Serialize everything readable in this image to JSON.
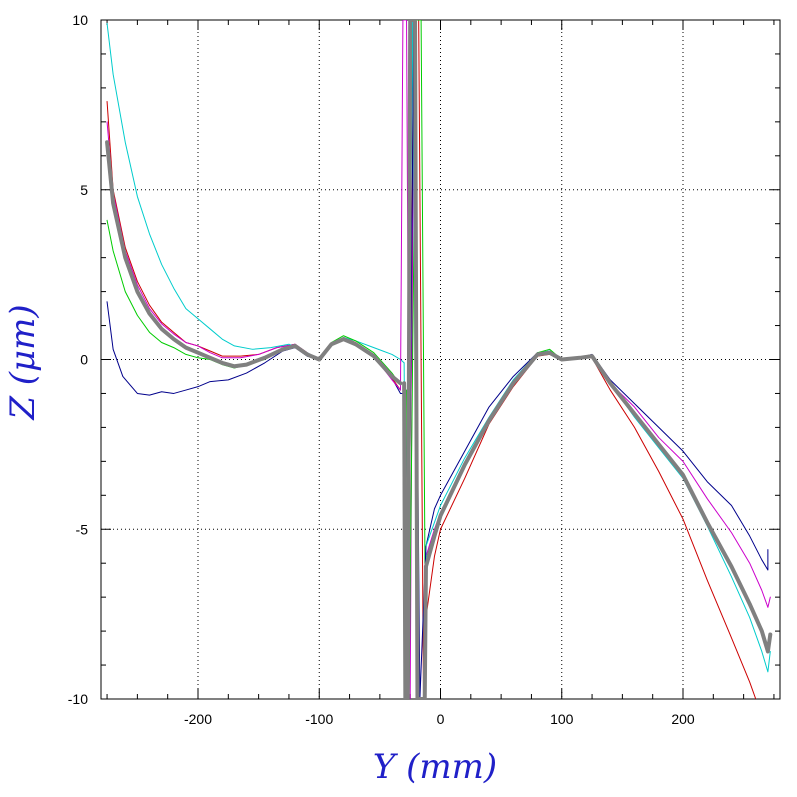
{
  "chart_data": {
    "type": "line",
    "xlabel": "Y (mm)",
    "ylabel": "Z (μm)",
    "xlim": [
      -280,
      280
    ],
    "ylim": [
      -10,
      10
    ],
    "xticks": [
      -200,
      -100,
      0,
      100,
      200
    ],
    "xtick_labels": [
      "-200",
      "-100",
      "0",
      "100",
      "200"
    ],
    "yticks": [
      -10,
      -5,
      0,
      5,
      10
    ],
    "ytick_labels": [
      "-10",
      "-5",
      "0",
      "5",
      "10"
    ],
    "grid": true,
    "legend": "none",
    "series": [
      {
        "color": "#00008b",
        "stroke_width": 1,
        "points": [
          [
            -275,
            1.7
          ],
          [
            -270,
            0.3
          ],
          [
            -262,
            -0.5
          ],
          [
            -250,
            -1.0
          ],
          [
            -240,
            -1.05
          ],
          [
            -230,
            -0.95
          ],
          [
            -220,
            -1.0
          ],
          [
            -210,
            -0.9
          ],
          [
            -200,
            -0.8
          ],
          [
            -190,
            -0.65
          ],
          [
            -175,
            -0.6
          ],
          [
            -160,
            -0.4
          ],
          [
            -145,
            -0.1
          ],
          [
            -130,
            0.25
          ],
          [
            -120,
            0.35
          ],
          [
            -110,
            0.1
          ],
          [
            -100,
            0.0
          ],
          [
            -90,
            0.45
          ],
          [
            -80,
            0.6
          ],
          [
            -70,
            0.45
          ],
          [
            -55,
            0.1
          ],
          [
            -40,
            -0.55
          ],
          [
            -33,
            -1.0
          ],
          [
            -30,
            -1.0
          ],
          null,
          [
            -12,
            -5.5
          ],
          [
            -5,
            -4.4
          ],
          [
            0,
            -4.0
          ],
          [
            20,
            -2.7
          ],
          [
            40,
            -1.4
          ],
          [
            60,
            -0.5
          ],
          [
            80,
            0.2
          ],
          [
            90,
            0.25
          ],
          [
            100,
            0.0
          ],
          [
            115,
            0.05
          ],
          [
            125,
            0.15
          ],
          [
            140,
            -0.6
          ],
          [
            160,
            -1.3
          ],
          [
            180,
            -2.0
          ],
          [
            200,
            -2.7
          ],
          [
            220,
            -3.6
          ],
          [
            240,
            -4.3
          ],
          [
            255,
            -5.2
          ],
          [
            265,
            -5.9
          ],
          [
            270,
            -6.2
          ],
          [
            270,
            -5.6
          ]
        ]
      },
      {
        "color": "#cc0000",
        "stroke_width": 1,
        "points": [
          [
            -275,
            7.6
          ],
          [
            -270,
            5.0
          ],
          [
            -260,
            3.3
          ],
          [
            -250,
            2.3
          ],
          [
            -240,
            1.6
          ],
          [
            -230,
            1.1
          ],
          [
            -220,
            0.8
          ],
          [
            -210,
            0.5
          ],
          [
            -200,
            0.4
          ],
          [
            -190,
            0.25
          ],
          [
            -180,
            0.1
          ],
          [
            -165,
            0.1
          ],
          [
            -150,
            0.15
          ],
          [
            -135,
            0.35
          ],
          [
            -120,
            0.45
          ],
          [
            -110,
            0.2
          ],
          [
            -100,
            0.0
          ],
          [
            -90,
            0.45
          ],
          [
            -80,
            0.65
          ],
          [
            -70,
            0.5
          ],
          [
            -55,
            0.1
          ],
          [
            -40,
            -0.55
          ],
          [
            -33,
            -0.9
          ],
          null,
          [
            -12,
            -7.6
          ],
          [
            -5,
            -5.8
          ],
          [
            0,
            -5.0
          ],
          [
            20,
            -3.5
          ],
          [
            40,
            -1.9
          ],
          [
            60,
            -0.8
          ],
          [
            80,
            0.1
          ],
          [
            90,
            0.15
          ],
          [
            100,
            0.0
          ],
          [
            115,
            0.05
          ],
          [
            125,
            0.05
          ],
          [
            140,
            -0.9
          ],
          [
            160,
            -2.0
          ],
          [
            180,
            -3.3
          ],
          [
            200,
            -4.7
          ],
          [
            220,
            -6.5
          ],
          [
            240,
            -8.2
          ],
          [
            255,
            -9.5
          ],
          [
            260,
            -10.0
          ]
        ]
      },
      {
        "color": "#cc00cc",
        "stroke_width": 1,
        "points": [
          [
            -275,
            7.0
          ],
          [
            -270,
            4.9
          ],
          [
            -260,
            3.2
          ],
          [
            -250,
            2.2
          ],
          [
            -240,
            1.5
          ],
          [
            -230,
            1.05
          ],
          [
            -220,
            0.75
          ],
          [
            -210,
            0.5
          ],
          [
            -200,
            0.4
          ],
          [
            -190,
            0.2
          ],
          [
            -180,
            0.05
          ],
          [
            -165,
            0.05
          ],
          [
            -150,
            0.15
          ],
          [
            -135,
            0.35
          ],
          [
            -120,
            0.45
          ],
          [
            -110,
            0.2
          ],
          [
            -100,
            0.0
          ],
          [
            -90,
            0.45
          ],
          [
            -80,
            0.6
          ],
          [
            -70,
            0.45
          ],
          [
            -55,
            0.1
          ],
          [
            -40,
            -0.6
          ],
          [
            -33,
            -0.9
          ],
          null,
          [
            -12,
            -5.8
          ],
          [
            -5,
            -5.0
          ],
          [
            0,
            -4.5
          ],
          [
            20,
            -3.1
          ],
          [
            40,
            -1.8
          ],
          [
            60,
            -0.7
          ],
          [
            80,
            0.15
          ],
          [
            90,
            0.2
          ],
          [
            100,
            0.0
          ],
          [
            115,
            0.05
          ],
          [
            125,
            0.1
          ],
          [
            140,
            -0.7
          ],
          [
            160,
            -1.4
          ],
          [
            180,
            -2.3
          ],
          [
            200,
            -3.0
          ],
          [
            220,
            -4.1
          ],
          [
            240,
            -5.1
          ],
          [
            255,
            -6.0
          ],
          [
            265,
            -6.8
          ],
          [
            270,
            -7.3
          ],
          [
            272,
            -7.0
          ]
        ]
      },
      {
        "color": "#00cccc",
        "stroke_width": 1,
        "points": [
          [
            -275,
            9.9
          ],
          [
            -270,
            8.4
          ],
          [
            -260,
            6.4
          ],
          [
            -250,
            4.8
          ],
          [
            -240,
            3.7
          ],
          [
            -230,
            2.8
          ],
          [
            -220,
            2.1
          ],
          [
            -210,
            1.5
          ],
          [
            -200,
            1.2
          ],
          [
            -190,
            0.9
          ],
          [
            -180,
            0.6
          ],
          [
            -170,
            0.4
          ],
          [
            -155,
            0.3
          ],
          [
            -140,
            0.35
          ],
          [
            -125,
            0.45
          ],
          [
            -115,
            0.3
          ],
          [
            -105,
            0.1
          ],
          [
            -100,
            0.0
          ],
          [
            -90,
            0.45
          ],
          [
            -80,
            0.65
          ],
          [
            -70,
            0.55
          ],
          [
            -55,
            0.35
          ],
          [
            -40,
            0.15
          ],
          [
            -33,
            0.0
          ],
          [
            -30,
            -0.1
          ],
          null,
          [
            -12,
            -5.5
          ],
          [
            -5,
            -4.8
          ],
          [
            0,
            -4.3
          ],
          [
            20,
            -2.9
          ],
          [
            40,
            -1.7
          ],
          [
            60,
            -0.6
          ],
          [
            80,
            0.2
          ],
          [
            90,
            0.25
          ],
          [
            100,
            0.0
          ],
          [
            115,
            0.05
          ],
          [
            125,
            0.1
          ],
          [
            140,
            -0.7
          ],
          [
            160,
            -1.7
          ],
          [
            180,
            -2.6
          ],
          [
            200,
            -3.5
          ],
          [
            220,
            -4.9
          ],
          [
            240,
            -6.4
          ],
          [
            255,
            -7.6
          ],
          [
            265,
            -8.6
          ],
          [
            270,
            -9.2
          ],
          [
            272,
            -8.6
          ]
        ]
      },
      {
        "color": "#00cc00",
        "stroke_width": 1,
        "points": [
          [
            -275,
            4.1
          ],
          [
            -270,
            3.2
          ],
          [
            -260,
            2.0
          ],
          [
            -250,
            1.3
          ],
          [
            -240,
            0.8
          ],
          [
            -230,
            0.5
          ],
          [
            -220,
            0.35
          ],
          [
            -210,
            0.15
          ],
          [
            -200,
            0.05
          ],
          [
            -190,
            0.0
          ],
          [
            -180,
            -0.15
          ],
          [
            -170,
            -0.25
          ],
          [
            -160,
            -0.15
          ],
          [
            -145,
            0.0
          ],
          [
            -130,
            0.3
          ],
          [
            -120,
            0.4
          ],
          [
            -110,
            0.15
          ],
          [
            -100,
            0.0
          ],
          [
            -90,
            0.5
          ],
          [
            -80,
            0.7
          ],
          [
            -70,
            0.55
          ],
          [
            -55,
            0.2
          ],
          [
            -40,
            -0.4
          ],
          [
            -33,
            -0.75
          ],
          null,
          [
            -12,
            -5.9
          ],
          [
            -5,
            -5.1
          ],
          [
            0,
            -4.6
          ],
          [
            20,
            -3.1
          ],
          [
            40,
            -1.8
          ],
          [
            60,
            -0.7
          ],
          [
            80,
            0.2
          ],
          [
            90,
            0.3
          ],
          [
            100,
            0.0
          ],
          [
            115,
            0.05
          ],
          [
            125,
            0.1
          ],
          [
            140,
            -0.7
          ],
          [
            160,
            -1.6
          ],
          [
            180,
            -2.5
          ],
          [
            200,
            -3.4
          ],
          [
            220,
            -4.8
          ],
          [
            240,
            -6.1
          ],
          [
            255,
            -7.2
          ],
          [
            265,
            -8.0
          ],
          [
            270,
            -8.5
          ],
          [
            272,
            -8.1
          ]
        ]
      },
      {
        "color": "#808080",
        "stroke_width": 4,
        "points": [
          [
            -275,
            6.4
          ],
          [
            -270,
            4.6
          ],
          [
            -260,
            3.0
          ],
          [
            -250,
            2.0
          ],
          [
            -240,
            1.35
          ],
          [
            -230,
            0.9
          ],
          [
            -220,
            0.6
          ],
          [
            -210,
            0.35
          ],
          [
            -200,
            0.2
          ],
          [
            -190,
            0.05
          ],
          [
            -180,
            -0.1
          ],
          [
            -170,
            -0.2
          ],
          [
            -160,
            -0.15
          ],
          [
            -145,
            0.05
          ],
          [
            -130,
            0.3
          ],
          [
            -120,
            0.4
          ],
          [
            -110,
            0.15
          ],
          [
            -100,
            0.0
          ],
          [
            -90,
            0.45
          ],
          [
            -80,
            0.6
          ],
          [
            -70,
            0.45
          ],
          [
            -55,
            0.1
          ],
          [
            -40,
            -0.5
          ],
          [
            -33,
            -0.7
          ],
          null,
          [
            -12,
            -6.1
          ],
          [
            -5,
            -5.2
          ],
          [
            0,
            -4.6
          ],
          [
            20,
            -3.1
          ],
          [
            40,
            -1.8
          ],
          [
            60,
            -0.7
          ],
          [
            80,
            0.15
          ],
          [
            90,
            0.2
          ],
          [
            100,
            0.0
          ],
          [
            115,
            0.05
          ],
          [
            125,
            0.1
          ],
          [
            140,
            -0.7
          ],
          [
            160,
            -1.6
          ],
          [
            180,
            -2.5
          ],
          [
            200,
            -3.4
          ],
          [
            220,
            -4.8
          ],
          [
            240,
            -6.1
          ],
          [
            255,
            -7.2
          ],
          [
            265,
            -8.0
          ],
          [
            270,
            -8.6
          ],
          [
            272,
            -8.1
          ]
        ]
      }
    ],
    "spikes": [
      {
        "color": "#cc00cc",
        "points": [
          [
            -33,
            -0.9
          ],
          [
            -31,
            10.0
          ],
          [
            -28,
            10.0
          ],
          [
            -25,
            -10.0
          ],
          [
            -22,
            10.0
          ]
        ]
      },
      {
        "color": "#cc0000",
        "points": [
          [
            -30,
            -1.0
          ],
          [
            -27,
            -10.0
          ],
          [
            -22,
            10.0
          ],
          [
            -18,
            10.0
          ],
          [
            -14,
            -10.0
          ],
          [
            -12,
            -7.6
          ]
        ]
      },
      {
        "color": "#00cc00",
        "points": [
          [
            -28,
            -0.9
          ],
          [
            -26,
            -10.0
          ],
          [
            -20,
            10.0
          ],
          [
            -16,
            10.0
          ],
          [
            -12,
            -10.0
          ],
          [
            -12,
            -5.9
          ]
        ]
      },
      {
        "color": "#00cccc",
        "points": [
          [
            -30,
            -0.1
          ],
          [
            -28,
            -10.0
          ],
          [
            -23,
            10.0
          ],
          [
            -19,
            -10.0
          ],
          [
            -13,
            -10.0
          ],
          [
            -12,
            -5.5
          ]
        ]
      },
      {
        "color": "#00008b",
        "points": [
          [
            -29,
            -1.0
          ],
          [
            -27,
            -10.0
          ],
          [
            -22,
            10.0
          ],
          [
            -17,
            -10.0
          ],
          [
            -12,
            -5.5
          ]
        ]
      },
      {
        "color": "#808080",
        "stroke_width": 4,
        "points": [
          [
            -30,
            -0.7
          ],
          [
            -29,
            -10.0
          ],
          [
            -27,
            -10.0
          ],
          [
            -25,
            10.0
          ],
          [
            -21,
            10.0
          ],
          [
            -19,
            -10.0
          ],
          [
            -15,
            -10.0
          ],
          [
            -13,
            -10.0
          ],
          [
            -12,
            -6.1
          ]
        ]
      }
    ]
  }
}
